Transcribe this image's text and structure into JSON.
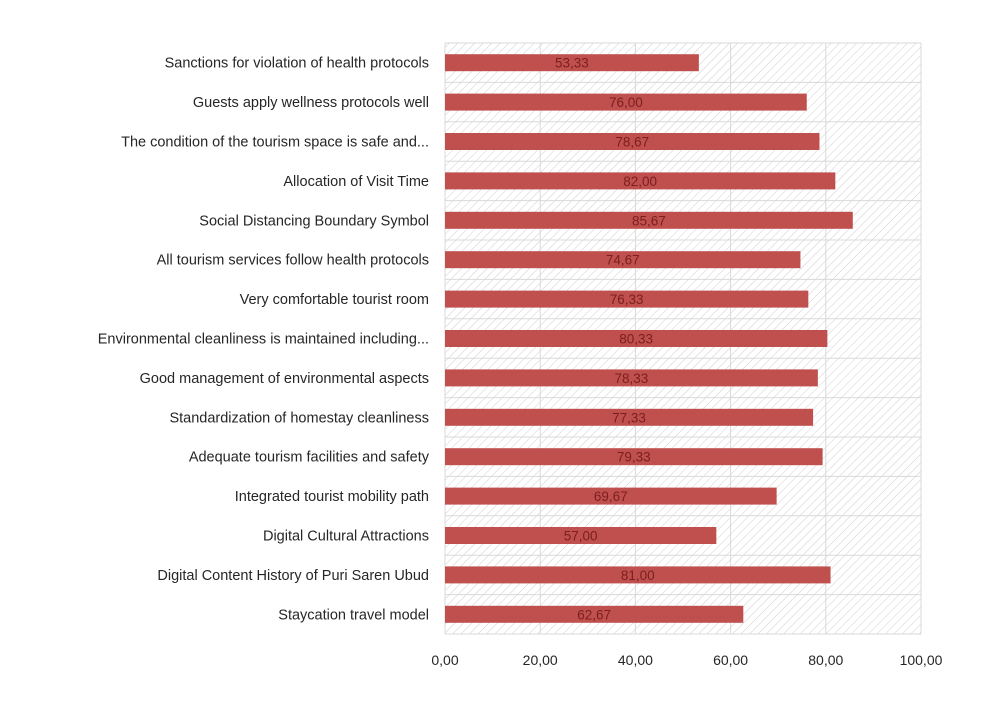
{
  "chart_data": {
    "type": "bar",
    "orientation": "horizontal",
    "categories": [
      "Sanctions for violation of health protocols",
      "Guests apply wellness protocols well",
      "The condition of the tourism space is safe and...",
      "Allocation of Visit Time",
      "Social Distancing Boundary Symbol",
      "All tourism services follow health protocols",
      "Very comfortable tourist room",
      "Environmental cleanliness is maintained including...",
      "Good management of environmental aspects",
      "Standardization of homestay cleanliness",
      "Adequate tourism facilities and safety",
      "Integrated tourist mobility path",
      "Digital Cultural Attractions",
      "Digital Content History of Puri Saren Ubud",
      "Staycation travel model"
    ],
    "values": [
      53.33,
      76.0,
      78.67,
      82.0,
      85.67,
      74.67,
      76.33,
      80.33,
      78.33,
      77.33,
      79.33,
      69.67,
      57.0,
      81.0,
      62.67
    ],
    "data_labels": [
      "53,33",
      "76,00",
      "78,67",
      "82,00",
      "85,67",
      "74,67",
      "76,33",
      "80,33",
      "78,33",
      "77,33",
      "79,33",
      "69,67",
      "57,00",
      "81,00",
      "62,67"
    ],
    "x_ticks": [
      "0,00",
      "20,00",
      "40,00",
      "60,00",
      "80,00",
      "100,00"
    ],
    "xlim": [
      0,
      100
    ],
    "grid": true,
    "legend": "none",
    "bar_color": "#c0504d",
    "plot_background": "diagonal-hatch",
    "title": "",
    "xlabel": "",
    "ylabel": ""
  }
}
